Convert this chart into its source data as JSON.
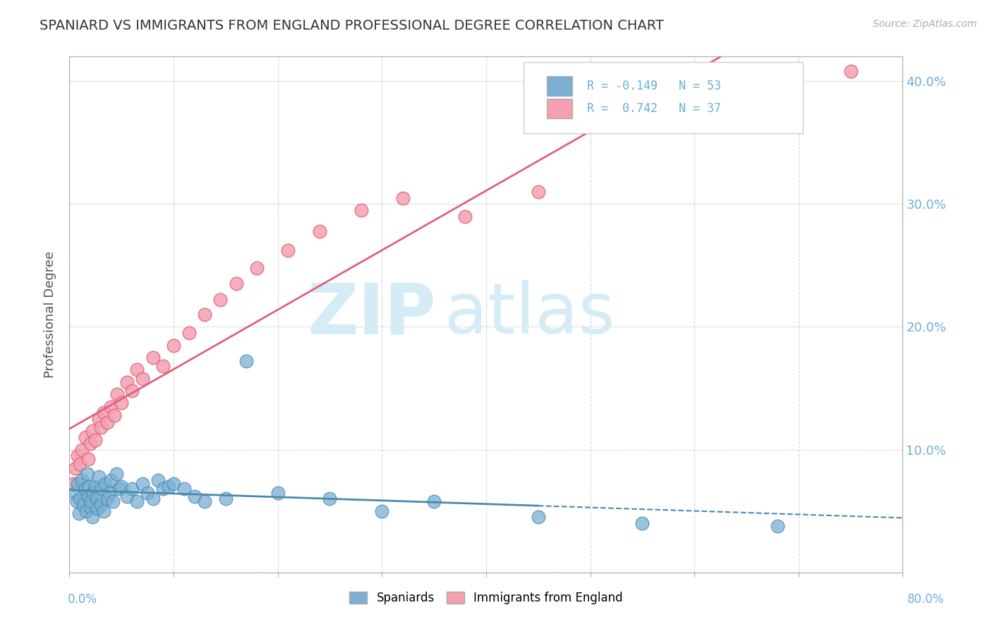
{
  "title": "SPANIARD VS IMMIGRANTS FROM ENGLAND PROFESSIONAL DEGREE CORRELATION CHART",
  "source": "Source: ZipAtlas.com",
  "ylabel": "Professional Degree",
  "xlim": [
    0.0,
    0.8
  ],
  "ylim": [
    0.0,
    0.42
  ],
  "color_spaniards": "#7bafd4",
  "color_england": "#f4a0b0",
  "color_spaniards_line": "#4a8ab0",
  "color_england_line": "#e06080",
  "color_axis_label": "#6baed6",
  "spaniards_x": [
    0.005,
    0.007,
    0.008,
    0.009,
    0.01,
    0.012,
    0.013,
    0.015,
    0.016,
    0.017,
    0.018,
    0.019,
    0.02,
    0.021,
    0.022,
    0.023,
    0.025,
    0.026,
    0.027,
    0.028,
    0.03,
    0.031,
    0.033,
    0.034,
    0.036,
    0.038,
    0.04,
    0.042,
    0.045,
    0.048,
    0.05,
    0.055,
    0.06,
    0.065,
    0.07,
    0.075,
    0.08,
    0.085,
    0.09,
    0.095,
    0.1,
    0.11,
    0.12,
    0.13,
    0.15,
    0.17,
    0.2,
    0.25,
    0.3,
    0.35,
    0.45,
    0.55,
    0.68
  ],
  "spaniards_y": [
    0.065,
    0.058,
    0.072,
    0.048,
    0.06,
    0.075,
    0.055,
    0.068,
    0.05,
    0.08,
    0.062,
    0.07,
    0.053,
    0.058,
    0.045,
    0.065,
    0.07,
    0.06,
    0.052,
    0.078,
    0.055,
    0.068,
    0.05,
    0.072,
    0.06,
    0.065,
    0.075,
    0.058,
    0.08,
    0.068,
    0.07,
    0.062,
    0.068,
    0.058,
    0.072,
    0.065,
    0.06,
    0.075,
    0.068,
    0.07,
    0.072,
    0.068,
    0.062,
    0.058,
    0.06,
    0.172,
    0.065,
    0.06,
    0.05,
    0.058,
    0.045,
    0.04,
    0.038
  ],
  "england_x": [
    0.004,
    0.006,
    0.008,
    0.01,
    0.012,
    0.015,
    0.018,
    0.02,
    0.022,
    0.025,
    0.028,
    0.03,
    0.033,
    0.036,
    0.04,
    0.043,
    0.046,
    0.05,
    0.055,
    0.06,
    0.065,
    0.07,
    0.08,
    0.09,
    0.1,
    0.115,
    0.13,
    0.145,
    0.16,
    0.18,
    0.21,
    0.24,
    0.28,
    0.32,
    0.38,
    0.45,
    0.75
  ],
  "england_y": [
    0.072,
    0.085,
    0.095,
    0.088,
    0.1,
    0.11,
    0.092,
    0.105,
    0.115,
    0.108,
    0.125,
    0.118,
    0.13,
    0.122,
    0.135,
    0.128,
    0.145,
    0.138,
    0.155,
    0.148,
    0.165,
    0.158,
    0.175,
    0.168,
    0.185,
    0.195,
    0.21,
    0.222,
    0.235,
    0.248,
    0.262,
    0.278,
    0.295,
    0.305,
    0.29,
    0.31,
    0.408
  ],
  "background_color": "#ffffff",
  "grid_color": "#cccccc"
}
